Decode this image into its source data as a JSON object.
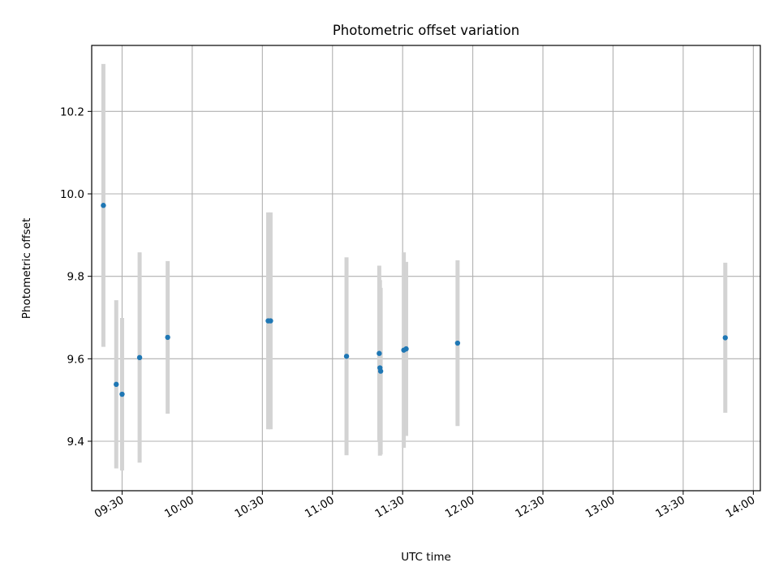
{
  "chart_data": {
    "type": "scatter",
    "title": "Photometric offset variation",
    "xlabel": "UTC time",
    "ylabel": "Photometric offset",
    "x_is_time": true,
    "xlim": [
      "09:17",
      "14:03"
    ],
    "ylim": [
      9.28,
      10.36
    ],
    "x_ticks": [
      "09:30",
      "10:00",
      "10:30",
      "11:00",
      "11:30",
      "12:00",
      "12:30",
      "13:00",
      "13:30",
      "14:00"
    ],
    "y_ticks": [
      9.4,
      9.6,
      9.8,
      10.0,
      10.2
    ],
    "y_tick_labels": [
      "9.4",
      "9.6",
      "9.8",
      "10.0",
      "10.2"
    ],
    "grid": true,
    "point_color": "#1f77b4",
    "errorbar_color": "#d3d3d3",
    "points": [
      {
        "t": "09:22",
        "y": 9.972,
        "err": 0.343
      },
      {
        "t": "09:27.5",
        "y": 9.538,
        "err": 0.204
      },
      {
        "t": "09:30",
        "y": 9.514,
        "err": 0.185
      },
      {
        "t": "09:37.5",
        "y": 9.603,
        "err": 0.255
      },
      {
        "t": "09:49.5",
        "y": 9.652,
        "err": 0.185
      },
      {
        "t": "10:32.5",
        "y": 9.692,
        "err": 0.263
      },
      {
        "t": "10:33.5",
        "y": 9.692,
        "err": 0.263
      },
      {
        "t": "11:06",
        "y": 9.606,
        "err": 0.24
      },
      {
        "t": "11:20",
        "y": 9.613,
        "err": 0.213
      },
      {
        "t": "11:20.3",
        "y": 9.578,
        "err": 0.213
      },
      {
        "t": "11:20.6",
        "y": 9.57,
        "err": 0.202
      },
      {
        "t": "11:30.5",
        "y": 9.621,
        "err": 0.237
      },
      {
        "t": "11:31.5",
        "y": 9.624,
        "err": 0.211
      },
      {
        "t": "11:53.5",
        "y": 9.638,
        "err": 0.201
      },
      {
        "t": "13:48",
        "y": 9.651,
        "err": 0.182
      }
    ]
  }
}
